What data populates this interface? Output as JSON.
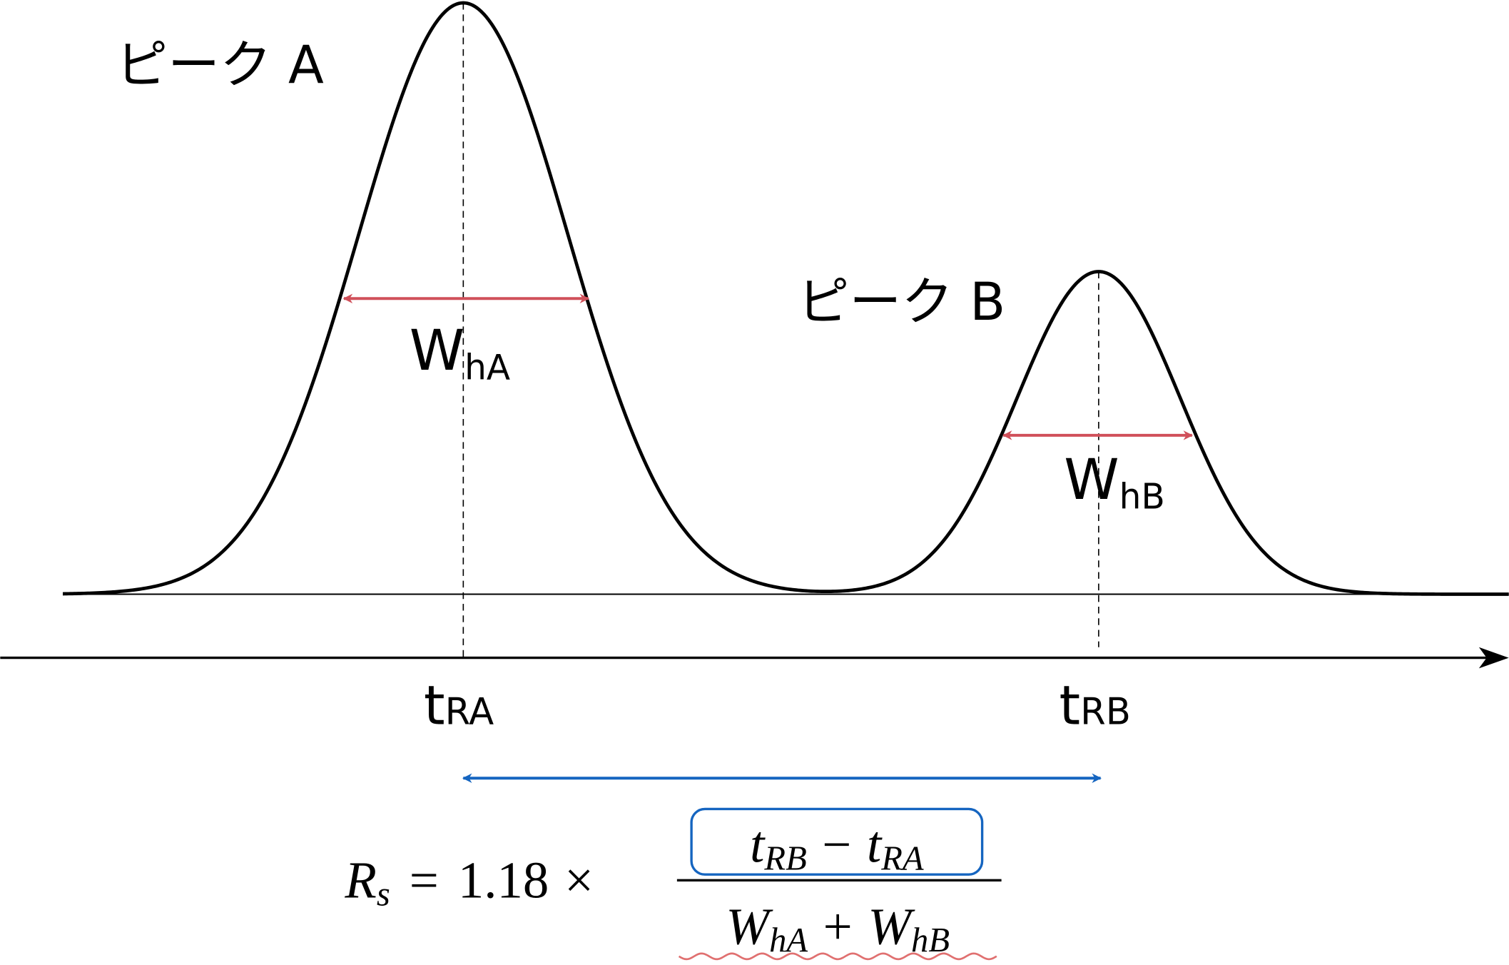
{
  "peaks": [
    {
      "label": "ピーク A",
      "width_label": {
        "main": "W",
        "sub": "hA"
      },
      "time_label": {
        "main": "t",
        "sub": "RA"
      }
    },
    {
      "label": "ピーク B",
      "width_label": {
        "main": "W",
        "sub": "hB"
      },
      "time_label": {
        "main": "t",
        "sub": "RB"
      }
    }
  ],
  "formula": {
    "lhs": {
      "main": "R",
      "sub": "s"
    },
    "equals": "=",
    "coefficient": 1.18,
    "times": "×",
    "minus": "−",
    "plus": "+"
  }
}
